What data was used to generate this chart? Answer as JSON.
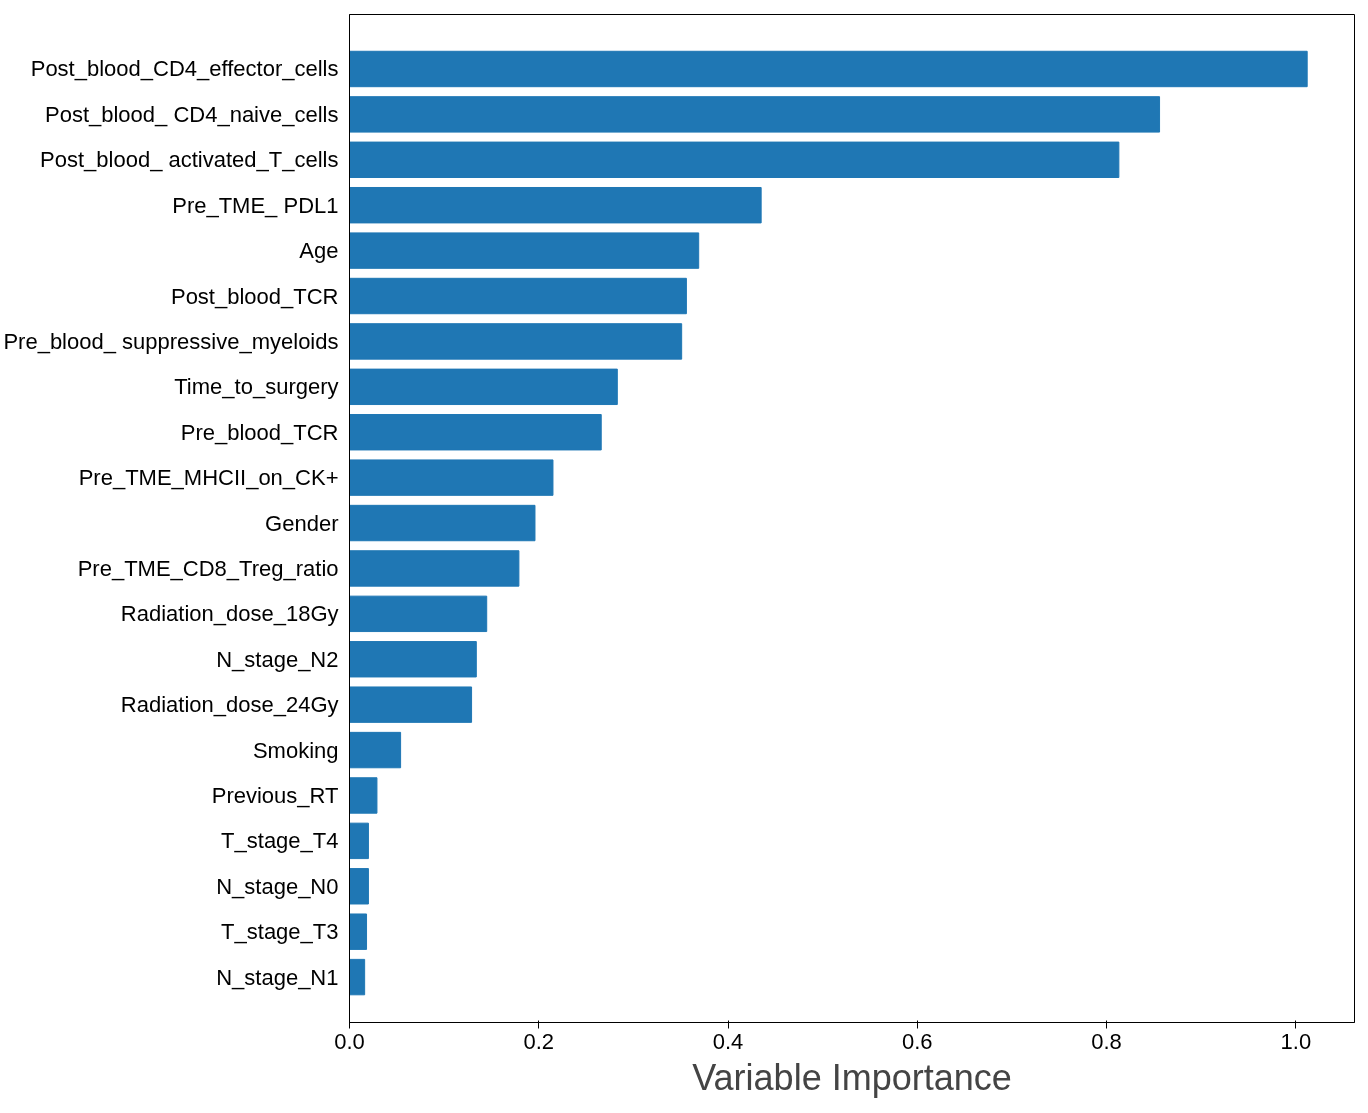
{
  "chart_data": {
    "type": "bar",
    "orientation": "horizontal",
    "xlabel": "Variable Importance",
    "categories": [
      "Post_blood_CD4_effector_cells",
      "Post_blood_ CD4_naive_cells",
      "Post_blood_ activated_T_cells",
      "Pre_TME_ PDL1",
      "Age",
      "Post_blood_TCR",
      "Pre_blood_ suppressive_myeloids",
      "Time_to_surgery",
      "Pre_blood_TCR",
      "Pre_TME_MHCII_on_CK+",
      "Gender",
      "Pre_TME_CD8_Treg_ratio",
      "Radiation_dose_18Gy",
      "N_stage_N2",
      "Radiation_dose_24Gy",
      "Smoking",
      "Previous_RT",
      "T_stage_T4",
      "N_stage_N0",
      "T_stage_T3",
      "N_stage_N1"
    ],
    "values": [
      1.012,
      0.856,
      0.813,
      0.435,
      0.369,
      0.356,
      0.351,
      0.283,
      0.266,
      0.215,
      0.196,
      0.179,
      0.145,
      0.134,
      0.129,
      0.054,
      0.029,
      0.02,
      0.02,
      0.018,
      0.016
    ],
    "color": "#1f77b4",
    "xlim": [
      0,
      1.062
    ],
    "xticks": [
      {
        "value": 0,
        "label": "0.0"
      },
      {
        "value": 0.2,
        "label": "0.2"
      },
      {
        "value": 0.4,
        "label": "0.4"
      },
      {
        "value": 0.6,
        "label": "0.6"
      },
      {
        "value": 0.8,
        "label": "0.8"
      },
      {
        "value": 1,
        "label": "1.0"
      }
    ],
    "grid": false
  }
}
